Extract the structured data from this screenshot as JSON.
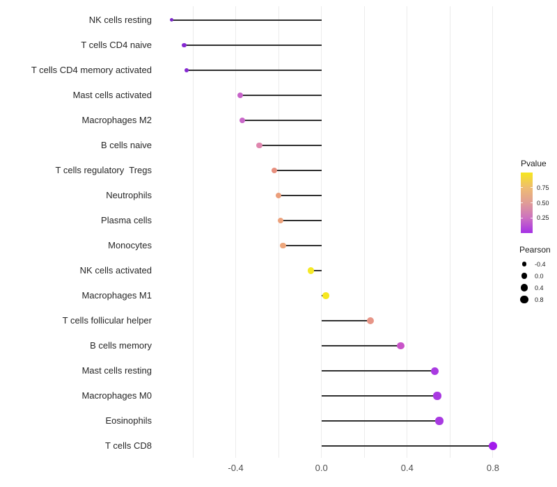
{
  "chart_data": {
    "type": "scatter",
    "subtype": "lollipop",
    "title": "",
    "xlabel": "",
    "ylabel": "",
    "xlim": [
      -0.78,
      0.89
    ],
    "baseline": 0,
    "grid_values": [
      -0.6,
      -0.4,
      -0.2,
      0.0,
      0.2,
      0.4,
      0.6,
      0.8
    ],
    "x_ticks": [
      {
        "value": -0.4,
        "label": "-0.4"
      },
      {
        "value": 0.0,
        "label": "0.0"
      },
      {
        "value": 0.4,
        "label": "0.4"
      },
      {
        "value": 0.8,
        "label": "0.8"
      }
    ],
    "points": [
      {
        "label": "NK cells resting",
        "pearson": -0.7,
        "pvalue_est": 0.02,
        "color": "#7b27c8",
        "size": 5
      },
      {
        "label": "T cells CD4 naive",
        "pearson": -0.64,
        "pvalue_est": 0.08,
        "color": "#8629d2",
        "size": 6.5
      },
      {
        "label": "T cells CD4 memory activated",
        "pearson": -0.63,
        "pvalue_est": 0.08,
        "color": "#8629d2",
        "size": 6.5
      },
      {
        "label": "Mast cells activated",
        "pearson": -0.38,
        "pvalue_est": 0.3,
        "color": "#c763c9",
        "size": 8
      },
      {
        "label": "Macrophages M2",
        "pearson": -0.37,
        "pvalue_est": 0.31,
        "color": "#c967c9",
        "size": 8.3
      },
      {
        "label": "B cells naive",
        "pearson": -0.29,
        "pvalue_est": 0.45,
        "color": "#df86ae",
        "size": 8.5
      },
      {
        "label": "T cells regulatory  Tregs",
        "pearson": -0.22,
        "pvalue_est": 0.55,
        "color": "#e78f7e",
        "size": 8.5
      },
      {
        "label": "Neutrophils",
        "pearson": -0.2,
        "pvalue_est": 0.6,
        "color": "#eb9e7b",
        "size": 8.5
      },
      {
        "label": "Plasma cells",
        "pearson": -0.19,
        "pvalue_est": 0.62,
        "color": "#eca27c",
        "size": 8.5
      },
      {
        "label": "Monocytes",
        "pearson": -0.18,
        "pvalue_est": 0.63,
        "color": "#eda67c",
        "size": 8.5
      },
      {
        "label": "NK cells activated",
        "pearson": -0.05,
        "pvalue_est": 0.97,
        "color": "#f5e926",
        "size": 9.5
      },
      {
        "label": "Macrophages M1",
        "pearson": 0.02,
        "pvalue_est": 0.98,
        "color": "#f6e71f",
        "size": 9.5
      },
      {
        "label": "T cells follicular helper",
        "pearson": 0.23,
        "pvalue_est": 0.58,
        "color": "#e79587",
        "size": 10
      },
      {
        "label": "B cells memory",
        "pearson": 0.37,
        "pvalue_est": 0.28,
        "color": "#c853c8",
        "size": 10.3
      },
      {
        "label": "Mast cells resting",
        "pearson": 0.53,
        "pvalue_est": 0.15,
        "color": "#a93ae1",
        "size": 11
      },
      {
        "label": "Macrophages M0",
        "pearson": 0.54,
        "pvalue_est": 0.15,
        "color": "#a93ae1",
        "size": 11.3
      },
      {
        "label": "Eosinophils",
        "pearson": 0.55,
        "pvalue_est": 0.15,
        "color": "#a83ae1",
        "size": 11.3
      },
      {
        "label": "T cells CD8",
        "pearson": 0.8,
        "pvalue_est": 0.05,
        "color": "#a21ceb",
        "size": 12.3
      }
    ],
    "legend_pvalue": {
      "title": "Pvalue",
      "range": [
        0,
        1
      ],
      "ticks": [
        {
          "value": 0.75,
          "label": "0.75"
        },
        {
          "value": 0.5,
          "label": "0.50"
        },
        {
          "value": 0.25,
          "label": "0.25"
        }
      ],
      "gradient_top_to_bottom": [
        "#f6e71d",
        "#eebc72",
        "#e09d96",
        "#cc71c0",
        "#a530e6"
      ]
    },
    "legend_pearson": {
      "title": "Pearson",
      "dot_color": "#000000",
      "entries": [
        {
          "label": "-0.4",
          "size": 6.7
        },
        {
          "label": "0.0",
          "size": 8.7
        },
        {
          "label": "0.4",
          "size": 10.3
        },
        {
          "label": "0.8",
          "size": 11.7
        }
      ]
    },
    "style": {
      "gridline_color": "#ebebeb",
      "stem_color": "#2e2e2e",
      "axis_text_color": "#4d4d4d",
      "category_text_color": "#262626",
      "legend_position": "right",
      "grid": "vertical-only"
    }
  }
}
